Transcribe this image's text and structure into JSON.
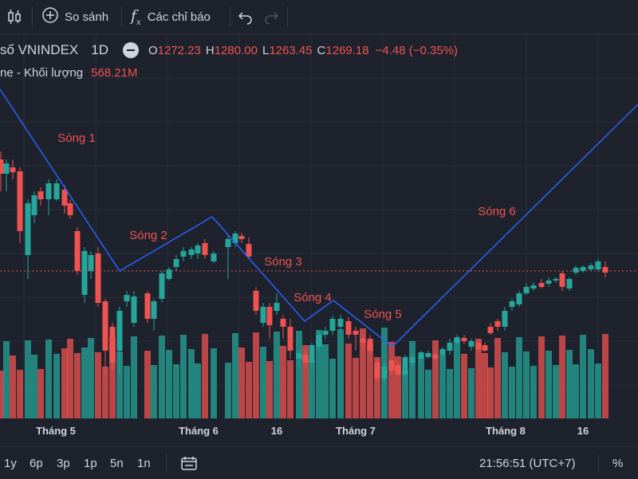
{
  "toolbar": {
    "compare_label": "So sánh",
    "indicators_label": "Các chỉ báo"
  },
  "legend": {
    "symbol": "số VNINDEX",
    "interval": "1D",
    "open_label": "O",
    "open": "1272.23",
    "high_label": "H",
    "high": "1280.00",
    "low_label": "L",
    "low": "1263.45",
    "close_label": "C",
    "close": "1269.18",
    "change": "−4.48 (−0.35%)",
    "volume_label": "ne - Khối lượng",
    "volume": "568.21M"
  },
  "colors": {
    "up": "#26a69a",
    "down": "#ef5350",
    "wave_line": "#2962ff",
    "price_line": "#ef5350",
    "background": "#1e222d"
  },
  "chart_data": {
    "type": "candlestick",
    "annotations": [
      "Sóng 1",
      "Sóng 2",
      "Sóng 3",
      "Sóng 4",
      "Sóng 5",
      "Sóng 6"
    ],
    "x_tick_labels": [
      "Tháng 5",
      "Tháng 6",
      "16",
      "Tháng 7",
      "Tháng 8",
      "16"
    ],
    "last_close": 1269.18,
    "grid": true
  },
  "bottom": {
    "ranges": [
      "1y",
      "6p",
      "3p",
      "1p",
      "5n",
      "1n"
    ],
    "time": "21:56:51 (UTC+7)",
    "percent": "%"
  }
}
